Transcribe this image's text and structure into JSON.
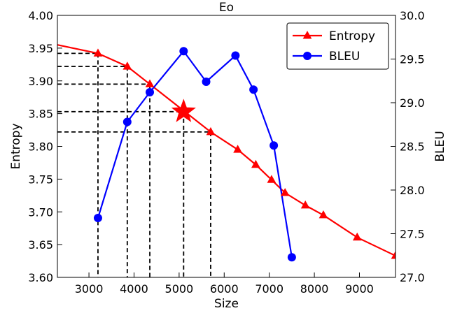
{
  "chart_data": {
    "type": "line",
    "title": "Eo",
    "xlabel": "Size",
    "ylabel_left": "Entropy",
    "ylabel_right": "BLEU",
    "xlim": [
      2300,
      9800
    ],
    "ylim_left": [
      3.6,
      4.0
    ],
    "ylim_right": [
      27.0,
      30.0
    ],
    "x_ticks": [
      3000,
      4000,
      5000,
      6000,
      7000,
      8000,
      9000
    ],
    "x_tick_labels": [
      "3000",
      "4000",
      "5000",
      "6000",
      "7000",
      "8000",
      "9000"
    ],
    "y_left_ticks": [
      3.6,
      3.65,
      3.7,
      3.75,
      3.8,
      3.85,
      3.9,
      3.95,
      4.0
    ],
    "y_left_tick_labels": [
      "3.60",
      "3.65",
      "3.70",
      "3.75",
      "3.80",
      "3.85",
      "3.90",
      "3.95",
      "4.00"
    ],
    "y_right_ticks": [
      27.0,
      27.5,
      28.0,
      28.5,
      29.0,
      29.5,
      30.0
    ],
    "y_right_tick_labels": [
      "27.0",
      "27.5",
      "28.0",
      "28.5",
      "29.0",
      "29.5",
      "30.0"
    ],
    "grid": false,
    "legend_position": "top-right",
    "series": [
      {
        "name": "Entropy",
        "axis": "left",
        "color": "#ff0000",
        "marker": "triangle",
        "x": [
          2300,
          3200,
          3850,
          4350,
          5700,
          6300,
          6700,
          7050,
          7350,
          7800,
          8200,
          8950,
          9800
        ],
        "y": [
          3.955,
          3.942,
          3.922,
          3.895,
          3.822,
          3.795,
          3.772,
          3.749,
          3.729,
          3.71,
          3.695,
          3.661,
          3.633
        ],
        "marker_mask": [
          false,
          true,
          true,
          true,
          true,
          true,
          true,
          true,
          true,
          true,
          true,
          true,
          true
        ]
      },
      {
        "name": "BLEU",
        "axis": "right",
        "color": "#0000ff",
        "marker": "circle",
        "x": [
          3200,
          3850,
          4350,
          5100,
          5600,
          6250,
          6650,
          7100,
          7500
        ],
        "y": [
          27.68,
          28.78,
          29.12,
          29.59,
          29.24,
          29.54,
          29.15,
          28.51,
          27.23
        ]
      }
    ],
    "highlight_star": {
      "x": 5100,
      "y": 3.853,
      "color": "#ff0000"
    },
    "reference_lines": [
      {
        "x": 3200,
        "y": 3.942
      },
      {
        "x": 3850,
        "y": 3.922
      },
      {
        "x": 4350,
        "y": 3.895
      },
      {
        "x": 5100,
        "y": 3.853
      },
      {
        "x": 5700,
        "y": 3.822
      }
    ]
  }
}
